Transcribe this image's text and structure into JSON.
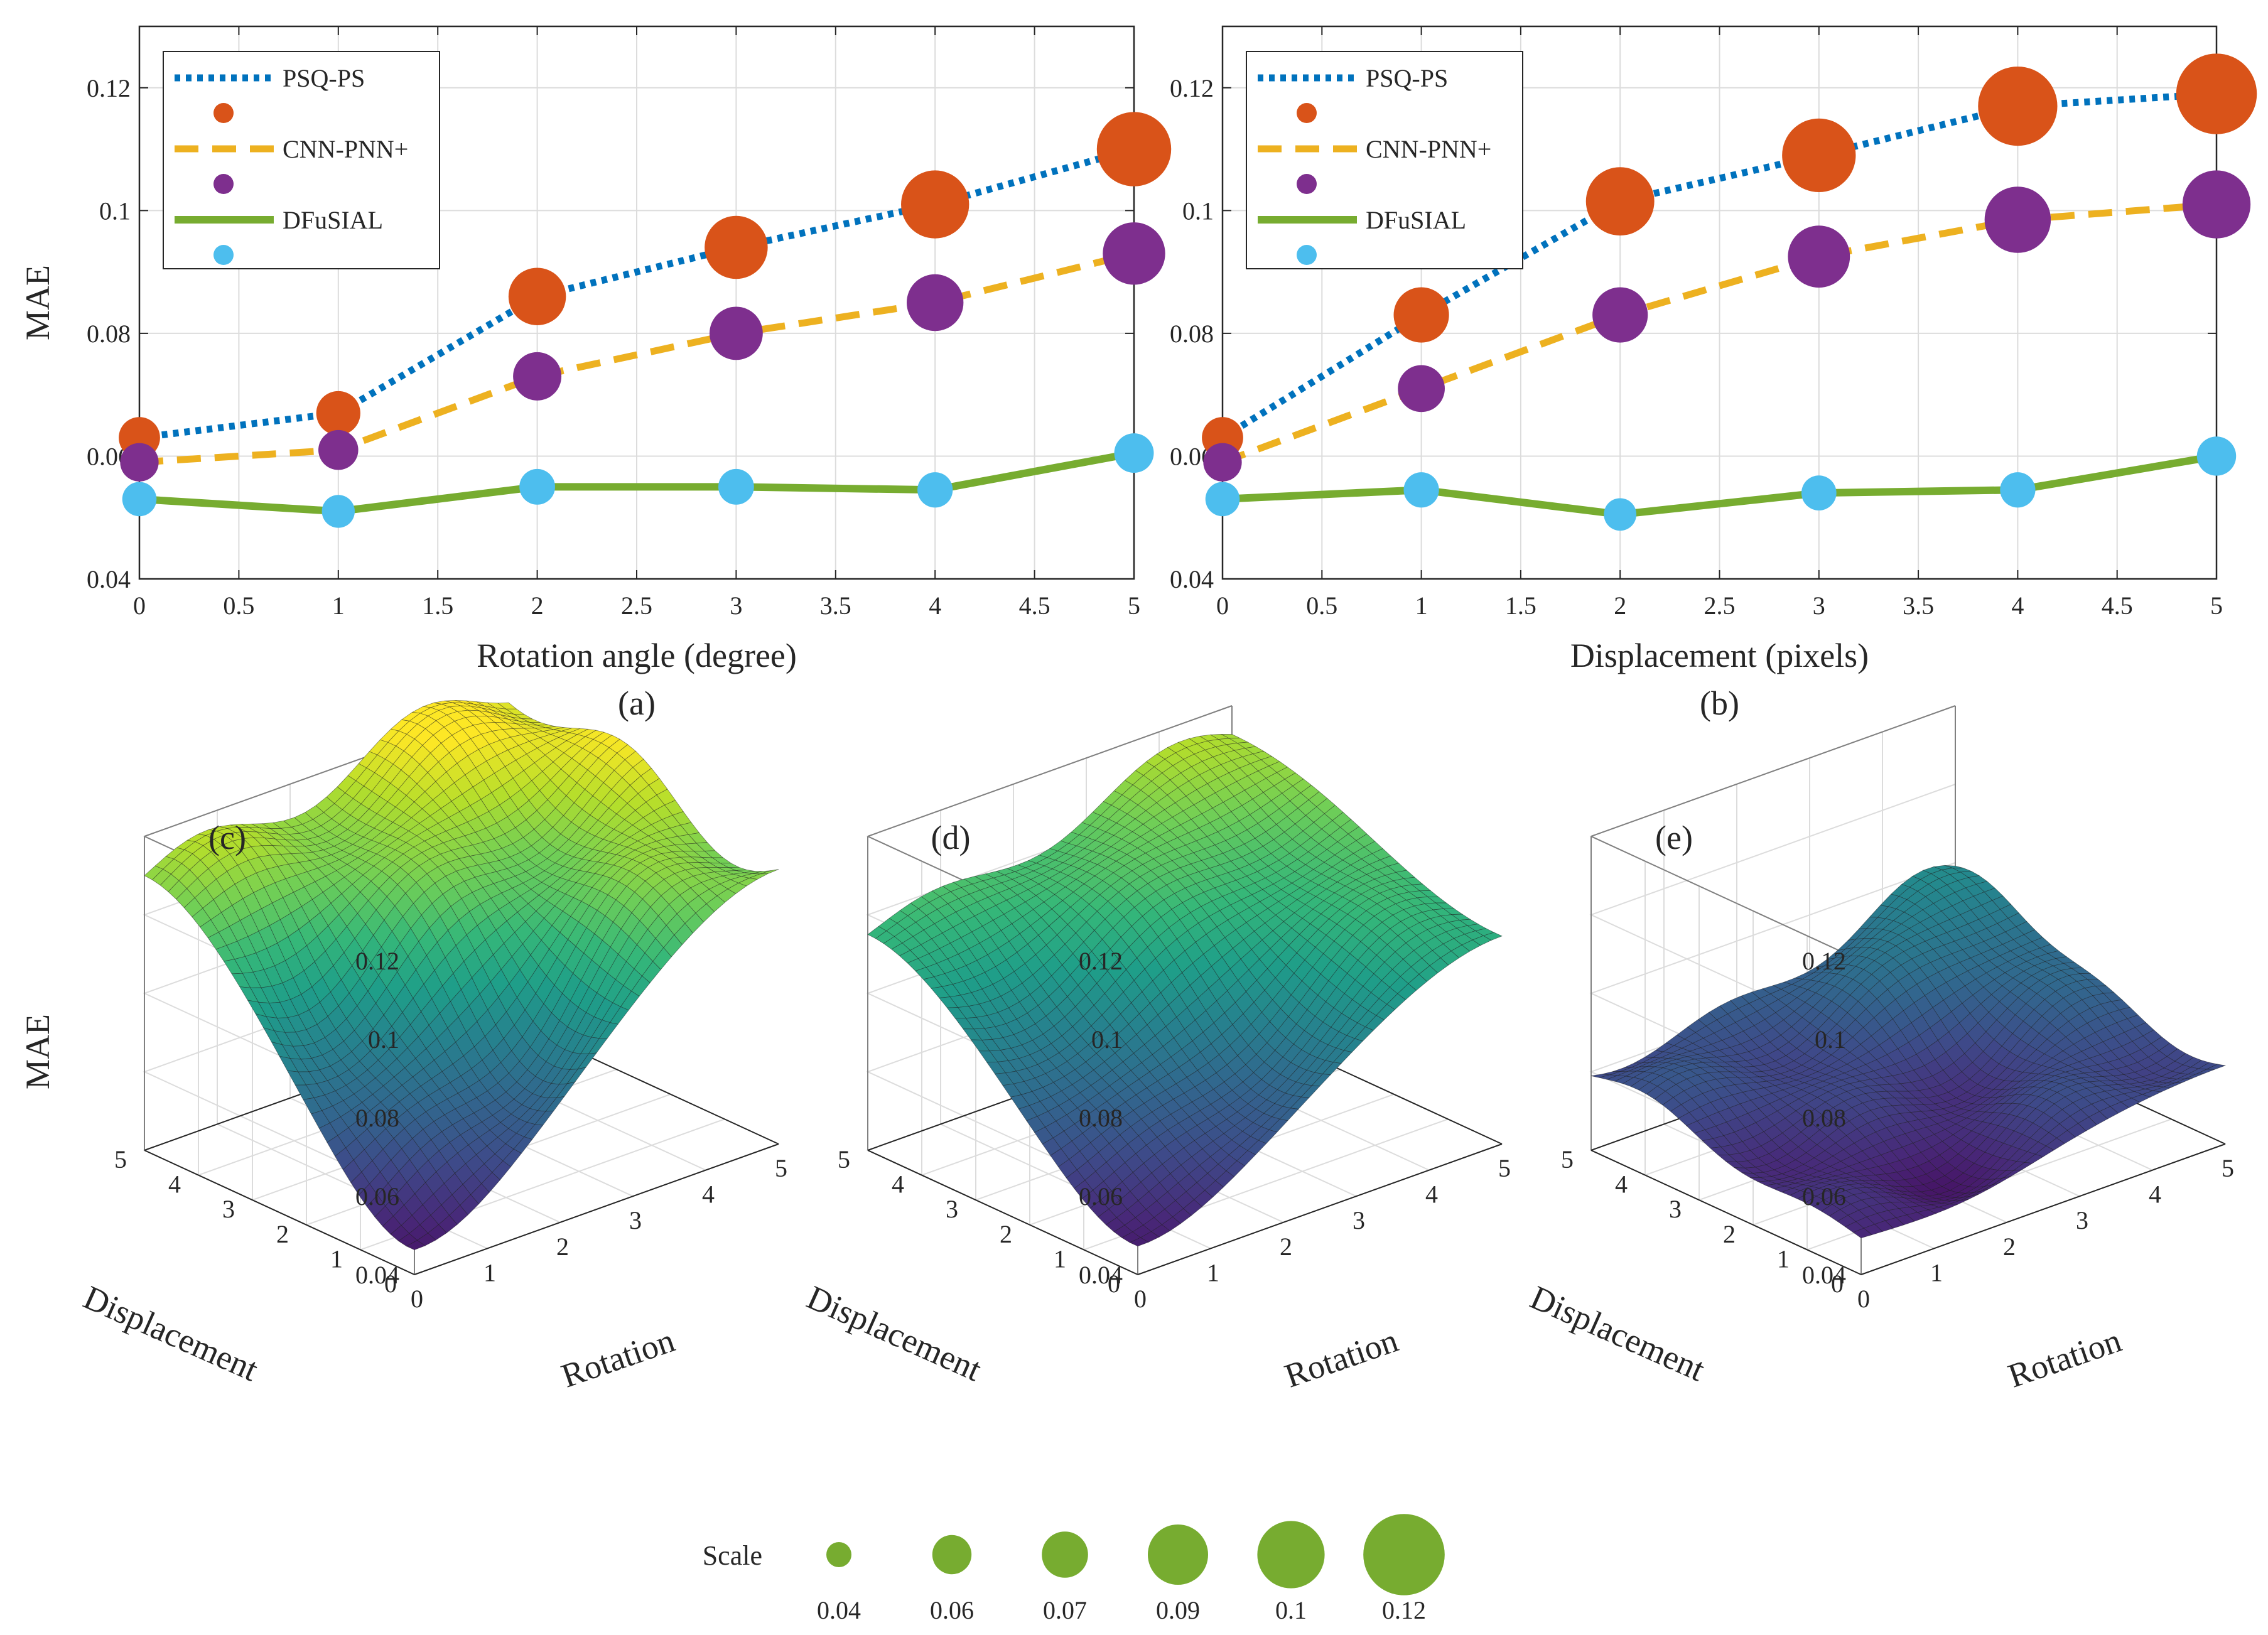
{
  "chart_data": [
    {
      "type": "line",
      "panel_label": "(a)",
      "xlabel": "Rotation angle (degree)",
      "ylabel": "MAE",
      "xlim": [
        0,
        5
      ],
      "ylim": [
        0.04,
        0.13
      ],
      "xticks": [
        "0",
        "0.5",
        "1",
        "1.5",
        "2",
        "2.5",
        "3",
        "3.5",
        "4",
        "4.5",
        "5"
      ],
      "yticks": [
        "0.04",
        "0.06",
        "0.08",
        "0.1",
        "0.12"
      ],
      "grid": true,
      "legend_position": "top-left",
      "x": [
        0,
        1,
        2,
        3,
        4,
        5
      ],
      "series": [
        {
          "name": "PSQ-PS",
          "style": "dotted",
          "color": "#0072BD",
          "marker_color": "#D95319",
          "values": [
            0.063,
            0.067,
            0.086,
            0.094,
            0.101,
            0.11
          ]
        },
        {
          "name": "CNN-PNN+",
          "style": "dashed",
          "color": "#EDB120",
          "marker_color": "#7E2F8E",
          "values": [
            0.059,
            0.061,
            0.073,
            0.08,
            0.085,
            0.093
          ]
        },
        {
          "name": "DFuSIAL",
          "style": "solid",
          "color": "#77AC30",
          "marker_color": "#4DBEEE",
          "values": [
            0.053,
            0.051,
            0.055,
            0.055,
            0.0545,
            0.0605
          ]
        }
      ]
    },
    {
      "type": "line",
      "panel_label": "(b)",
      "xlabel": "Displacement (pixels)",
      "ylabel": "",
      "xlim": [
        0,
        5
      ],
      "ylim": [
        0.04,
        0.13
      ],
      "xticks": [
        "0",
        "0.5",
        "1",
        "1.5",
        "2",
        "2.5",
        "3",
        "3.5",
        "4",
        "4.5",
        "5"
      ],
      "yticks": [
        "0.04",
        "0.06",
        "0.08",
        "0.1",
        "0.12"
      ],
      "grid": true,
      "legend_position": "top-left",
      "x": [
        0,
        1,
        2,
        3,
        4,
        5
      ],
      "series": [
        {
          "name": "PSQ-PS",
          "style": "dotted",
          "color": "#0072BD",
          "marker_color": "#D95319",
          "values": [
            0.063,
            0.083,
            0.1015,
            0.109,
            0.117,
            0.119
          ]
        },
        {
          "name": "CNN-PNN+",
          "style": "dashed",
          "color": "#EDB120",
          "marker_color": "#7E2F8E",
          "values": [
            0.059,
            0.071,
            0.083,
            0.0925,
            0.0985,
            0.101
          ]
        },
        {
          "name": "DFuSIAL",
          "style": "solid",
          "color": "#77AC30",
          "marker_color": "#4DBEEE",
          "values": [
            0.053,
            0.0545,
            0.0505,
            0.054,
            0.0545,
            0.06
          ]
        }
      ]
    },
    {
      "type": "surface",
      "panel_label": "(c)",
      "zlabel": "MAE",
      "xlabel": "Rotation",
      "ylabel": "Displacement",
      "zlim": [
        0.04,
        0.12
      ],
      "zticks": [
        "0.04",
        "0.06",
        "0.08",
        "0.1",
        "0.12"
      ],
      "xticks": [
        "0",
        "1",
        "2",
        "3",
        "4",
        "5"
      ],
      "yticks": [
        "0",
        "1",
        "2",
        "3",
        "4",
        "5"
      ],
      "corners": {
        "origin": 0.05,
        "max_rotation": 0.11,
        "max_displacement": 0.11,
        "max_both": 0.125
      }
    },
    {
      "type": "surface",
      "panel_label": "(d)",
      "zlabel": "",
      "xlabel": "Rotation",
      "ylabel": "Displacement",
      "zlim": [
        0.04,
        0.12
      ],
      "zticks": [
        "0.04",
        "0.06",
        "0.08",
        "0.1",
        "0.12"
      ],
      "xticks": [
        "0",
        "1",
        "2",
        "3",
        "4",
        "5"
      ],
      "yticks": [
        "0",
        "1",
        "2",
        "3",
        "4",
        "5"
      ],
      "corners": {
        "origin": 0.05,
        "max_rotation": 0.093,
        "max_displacement": 0.095,
        "max_both": 0.113
      }
    },
    {
      "type": "surface",
      "panel_label": "(e)",
      "zlabel": "",
      "xlabel": "Rotation",
      "ylabel": "Displacement",
      "zlim": [
        0.04,
        0.12
      ],
      "zticks": [
        "0.04",
        "0.06",
        "0.08",
        "0.1",
        "0.12"
      ],
      "xticks": [
        "0",
        "1",
        "2",
        "3",
        "4",
        "5"
      ],
      "yticks": [
        "0",
        "1",
        "2",
        "3",
        "4",
        "5"
      ],
      "corners": {
        "origin": 0.05,
        "max_rotation": 0.06,
        "max_displacement": 0.06,
        "max_both": 0.07
      }
    }
  ],
  "scale_legend": {
    "title": "Scale",
    "color": "#77AC30",
    "values": [
      0.04,
      0.06,
      0.07,
      0.09,
      0.1,
      0.12
    ],
    "labels": [
      "0.04",
      "0.06",
      "0.07",
      "0.09",
      "0.1",
      "0.12"
    ]
  },
  "colors": {
    "grid": "#dcdcdc",
    "axis": "#262626"
  }
}
